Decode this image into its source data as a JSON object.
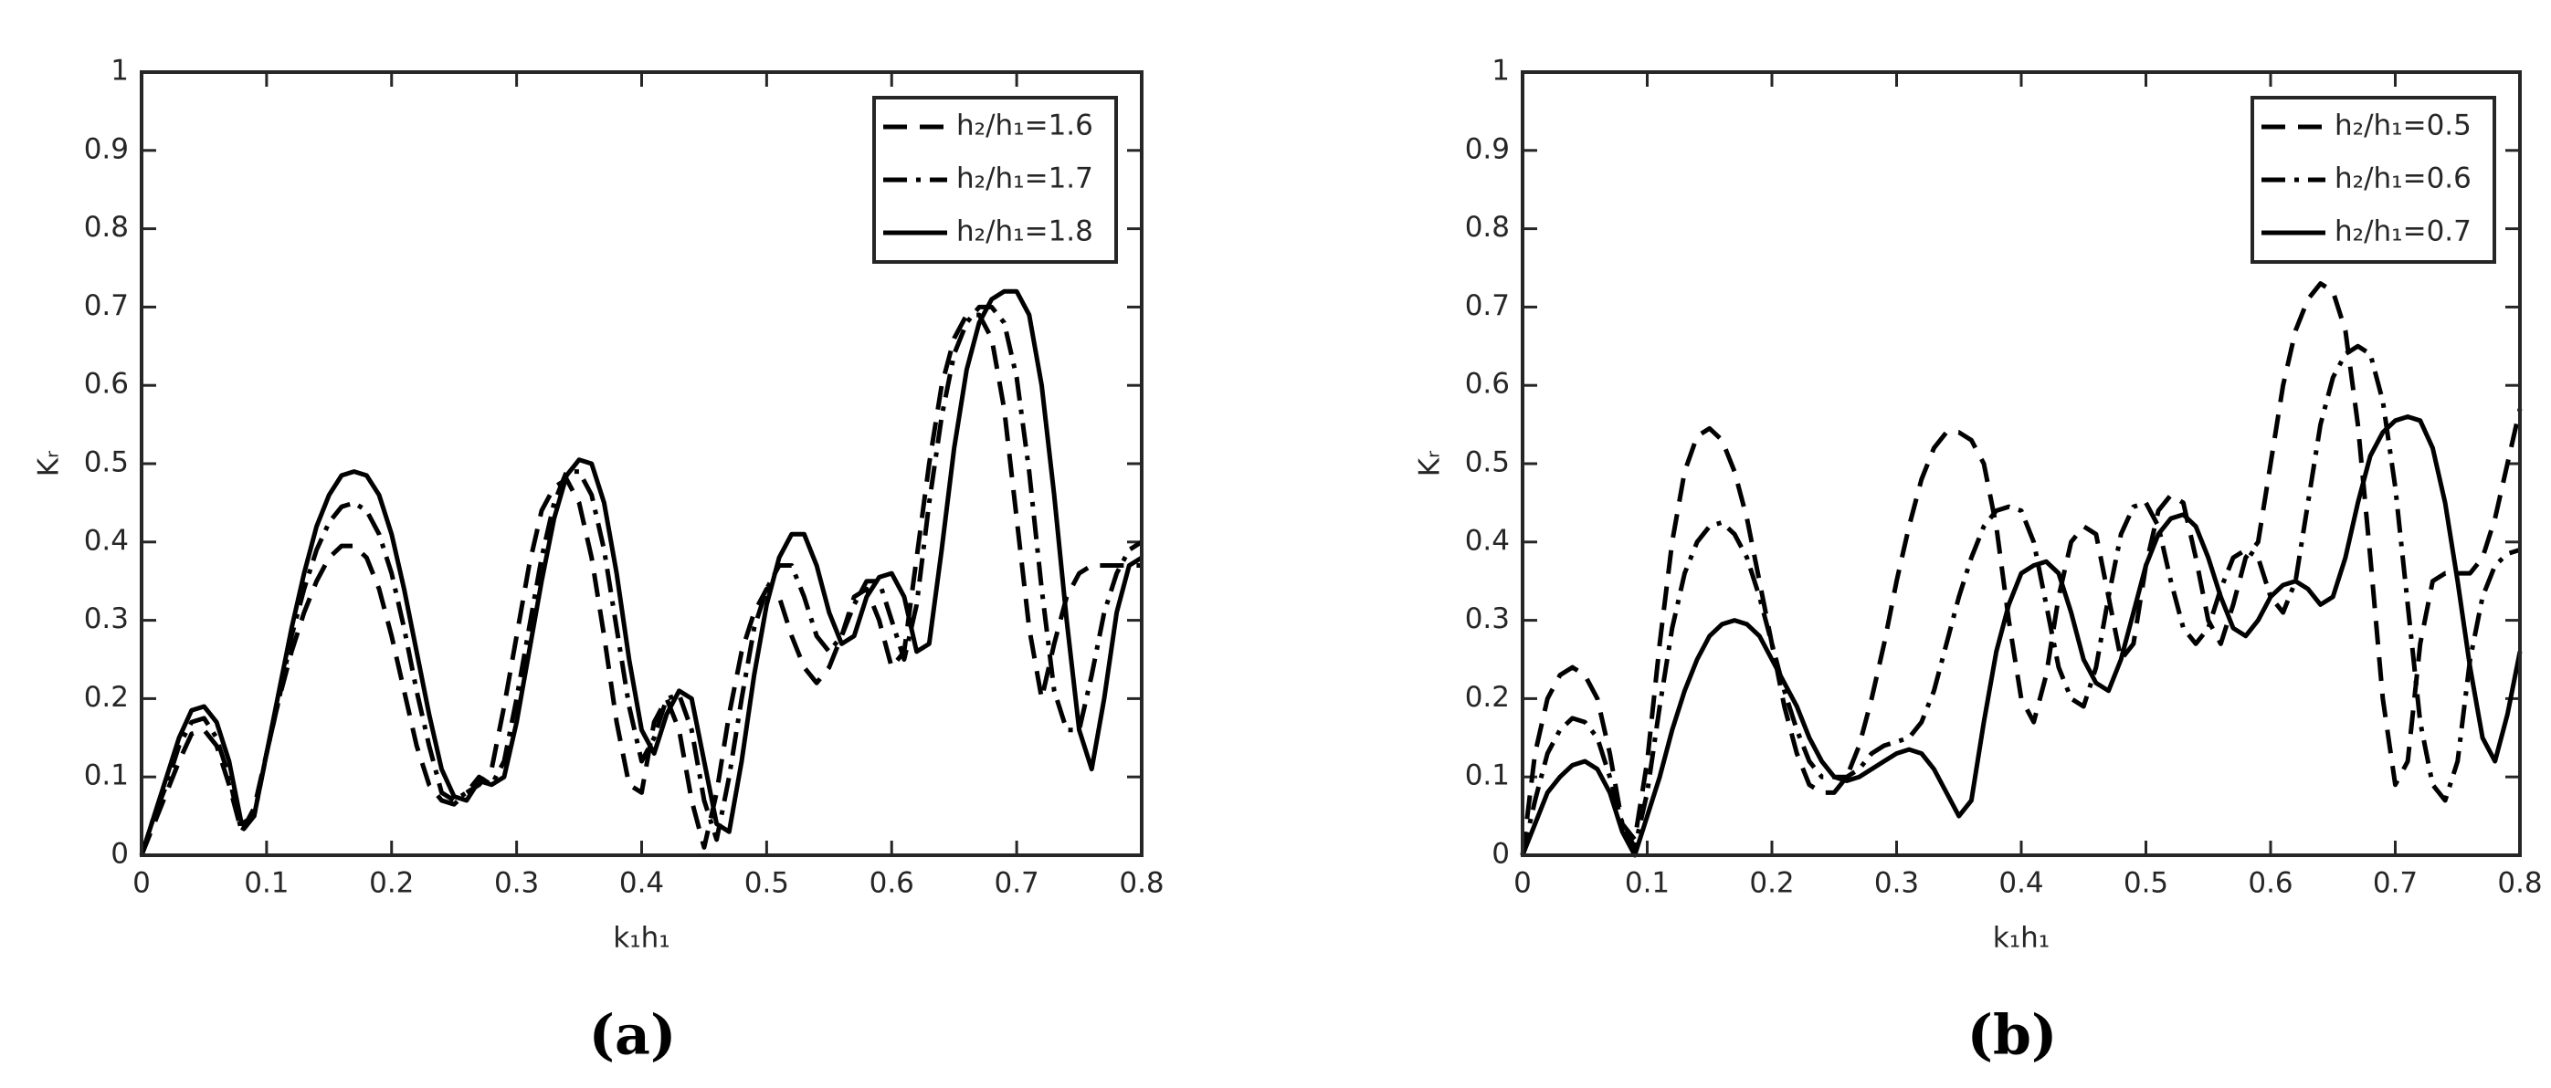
{
  "chart_data": [
    {
      "type": "line",
      "caption": "(a)",
      "xlabel": "k₁h₁",
      "ylabel": "Kᵣ",
      "legend": "upper right",
      "xlim": [
        0,
        0.8
      ],
      "ylim": [
        0,
        1
      ],
      "xticks": [
        0,
        0.1,
        0.2,
        0.3,
        0.4,
        0.5,
        0.6,
        0.7,
        0.8
      ],
      "yticks": [
        0,
        0.1,
        0.2,
        0.3,
        0.4,
        0.5,
        0.6,
        0.7,
        0.8,
        0.9,
        1
      ],
      "x": [
        0,
        0.01,
        0.02,
        0.03,
        0.04,
        0.05,
        0.06,
        0.07,
        0.08,
        0.09,
        0.1,
        0.11,
        0.12,
        0.13,
        0.14,
        0.15,
        0.16,
        0.17,
        0.18,
        0.19,
        0.2,
        0.21,
        0.22,
        0.23,
        0.24,
        0.25,
        0.26,
        0.27,
        0.28,
        0.29,
        0.3,
        0.31,
        0.32,
        0.33,
        0.34,
        0.35,
        0.36,
        0.37,
        0.38,
        0.39,
        0.4,
        0.41,
        0.42,
        0.43,
        0.44,
        0.45,
        0.46,
        0.47,
        0.48,
        0.49,
        0.5,
        0.51,
        0.52,
        0.53,
        0.54,
        0.55,
        0.56,
        0.57,
        0.58,
        0.59,
        0.6,
        0.61,
        0.62,
        0.63,
        0.64,
        0.65,
        0.66,
        0.67,
        0.68,
        0.69,
        0.7,
        0.71,
        0.72,
        0.73,
        0.74,
        0.75,
        0.76,
        0.77,
        0.78,
        0.79,
        0.8
      ],
      "series": [
        {
          "name": "h₂/h₁=1.6",
          "color": "#000000",
          "line_style": "dashed",
          "values": [
            0,
            0.04,
            0.08,
            0.12,
            0.155,
            0.16,
            0.14,
            0.09,
            0.03,
            0.06,
            0.13,
            0.2,
            0.26,
            0.31,
            0.35,
            0.38,
            0.395,
            0.395,
            0.38,
            0.34,
            0.28,
            0.21,
            0.14,
            0.09,
            0.07,
            0.065,
            0.08,
            0.09,
            0.11,
            0.19,
            0.28,
            0.37,
            0.44,
            0.47,
            0.48,
            0.45,
            0.38,
            0.28,
            0.17,
            0.09,
            0.08,
            0.17,
            0.2,
            0.16,
            0.07,
            0.01,
            0.08,
            0.18,
            0.26,
            0.31,
            0.34,
            0.33,
            0.28,
            0.24,
            0.22,
            0.24,
            0.28,
            0.33,
            0.34,
            0.3,
            0.24,
            0.26,
            0.38,
            0.5,
            0.6,
            0.66,
            0.69,
            0.69,
            0.66,
            0.57,
            0.43,
            0.29,
            0.2,
            0.27,
            0.33,
            0.36,
            0.37,
            0.37,
            0.37,
            0.37,
            0.37
          ]
        },
        {
          "name": "h₂/h₁=1.7",
          "color": "#000000",
          "line_style": "dashdot",
          "values": [
            0,
            0.05,
            0.09,
            0.14,
            0.17,
            0.175,
            0.15,
            0.1,
            0.03,
            0.05,
            0.13,
            0.2,
            0.28,
            0.34,
            0.39,
            0.425,
            0.445,
            0.45,
            0.44,
            0.41,
            0.36,
            0.29,
            0.21,
            0.14,
            0.08,
            0.07,
            0.08,
            0.1,
            0.09,
            0.12,
            0.2,
            0.29,
            0.38,
            0.45,
            0.49,
            0.49,
            0.46,
            0.39,
            0.29,
            0.19,
            0.12,
            0.15,
            0.2,
            0.205,
            0.16,
            0.07,
            0.02,
            0.1,
            0.2,
            0.29,
            0.34,
            0.37,
            0.37,
            0.33,
            0.28,
            0.26,
            0.28,
            0.32,
            0.35,
            0.35,
            0.3,
            0.25,
            0.32,
            0.45,
            0.56,
            0.64,
            0.68,
            0.7,
            0.7,
            0.68,
            0.61,
            0.49,
            0.34,
            0.21,
            0.16,
            0.16,
            0.23,
            0.31,
            0.36,
            0.39,
            0.4
          ]
        },
        {
          "name": "h₂/h₁=1.8",
          "color": "#000000",
          "line_style": "solid",
          "values": [
            0,
            0.05,
            0.1,
            0.15,
            0.185,
            0.19,
            0.17,
            0.12,
            0.04,
            0.05,
            0.13,
            0.21,
            0.29,
            0.36,
            0.42,
            0.46,
            0.485,
            0.49,
            0.485,
            0.46,
            0.41,
            0.34,
            0.26,
            0.18,
            0.11,
            0.075,
            0.07,
            0.095,
            0.09,
            0.1,
            0.17,
            0.26,
            0.35,
            0.43,
            0.485,
            0.505,
            0.5,
            0.45,
            0.36,
            0.25,
            0.16,
            0.13,
            0.18,
            0.21,
            0.2,
            0.12,
            0.04,
            0.03,
            0.12,
            0.23,
            0.32,
            0.38,
            0.41,
            0.41,
            0.37,
            0.31,
            0.27,
            0.28,
            0.33,
            0.355,
            0.36,
            0.33,
            0.26,
            0.27,
            0.39,
            0.52,
            0.62,
            0.68,
            0.71,
            0.72,
            0.72,
            0.69,
            0.6,
            0.46,
            0.3,
            0.16,
            0.11,
            0.2,
            0.31,
            0.37,
            0.38
          ]
        }
      ]
    },
    {
      "type": "line",
      "caption": "(b)",
      "xlabel": "k₁h₁",
      "ylabel": "Kᵣ",
      "legend": "upper right",
      "xlim": [
        0,
        0.8
      ],
      "ylim": [
        0,
        1
      ],
      "xticks": [
        0,
        0.1,
        0.2,
        0.3,
        0.4,
        0.5,
        0.6,
        0.7,
        0.8
      ],
      "yticks": [
        0,
        0.1,
        0.2,
        0.3,
        0.4,
        0.5,
        0.6,
        0.7,
        0.8,
        0.9,
        1
      ],
      "x": [
        0,
        0.01,
        0.02,
        0.03,
        0.04,
        0.05,
        0.06,
        0.07,
        0.08,
        0.09,
        0.1,
        0.11,
        0.12,
        0.13,
        0.14,
        0.15,
        0.16,
        0.17,
        0.18,
        0.19,
        0.2,
        0.21,
        0.22,
        0.23,
        0.24,
        0.25,
        0.26,
        0.27,
        0.28,
        0.29,
        0.3,
        0.31,
        0.32,
        0.33,
        0.34,
        0.35,
        0.36,
        0.37,
        0.38,
        0.39,
        0.4,
        0.41,
        0.42,
        0.43,
        0.44,
        0.45,
        0.46,
        0.47,
        0.48,
        0.49,
        0.5,
        0.51,
        0.52,
        0.53,
        0.54,
        0.55,
        0.56,
        0.57,
        0.58,
        0.59,
        0.6,
        0.61,
        0.62,
        0.63,
        0.64,
        0.65,
        0.66,
        0.67,
        0.68,
        0.69,
        0.7,
        0.71,
        0.72,
        0.73,
        0.74,
        0.75,
        0.76,
        0.77,
        0.78,
        0.79,
        0.8
      ],
      "series": [
        {
          "name": "h₂/h₁=0.5",
          "color": "#000000",
          "line_style": "dashed",
          "values": [
            0,
            0.13,
            0.2,
            0.23,
            0.24,
            0.23,
            0.2,
            0.13,
            0.04,
            0.02,
            0.12,
            0.27,
            0.4,
            0.49,
            0.535,
            0.545,
            0.53,
            0.49,
            0.43,
            0.35,
            0.27,
            0.19,
            0.13,
            0.09,
            0.08,
            0.08,
            0.1,
            0.14,
            0.2,
            0.27,
            0.35,
            0.42,
            0.48,
            0.52,
            0.54,
            0.54,
            0.53,
            0.5,
            0.42,
            0.3,
            0.2,
            0.17,
            0.23,
            0.33,
            0.4,
            0.42,
            0.41,
            0.33,
            0.25,
            0.27,
            0.37,
            0.44,
            0.46,
            0.45,
            0.38,
            0.3,
            0.27,
            0.32,
            0.38,
            0.4,
            0.5,
            0.6,
            0.67,
            0.71,
            0.73,
            0.72,
            0.67,
            0.55,
            0.38,
            0.2,
            0.09,
            0.12,
            0.27,
            0.35,
            0.36,
            0.36,
            0.36,
            0.38,
            0.43,
            0.5,
            0.57
          ]
        },
        {
          "name": "h₂/h₁=0.6",
          "color": "#000000",
          "line_style": "dashdot",
          "values": [
            0,
            0.07,
            0.13,
            0.16,
            0.175,
            0.17,
            0.15,
            0.1,
            0.04,
            0.01,
            0.08,
            0.19,
            0.29,
            0.36,
            0.4,
            0.42,
            0.425,
            0.41,
            0.38,
            0.33,
            0.27,
            0.21,
            0.16,
            0.12,
            0.1,
            0.1,
            0.1,
            0.11,
            0.13,
            0.14,
            0.145,
            0.15,
            0.17,
            0.21,
            0.27,
            0.33,
            0.38,
            0.42,
            0.44,
            0.445,
            0.44,
            0.4,
            0.32,
            0.24,
            0.2,
            0.19,
            0.24,
            0.33,
            0.41,
            0.445,
            0.45,
            0.42,
            0.35,
            0.29,
            0.27,
            0.29,
            0.34,
            0.38,
            0.39,
            0.38,
            0.33,
            0.31,
            0.35,
            0.45,
            0.55,
            0.61,
            0.64,
            0.65,
            0.64,
            0.58,
            0.47,
            0.32,
            0.17,
            0.09,
            0.07,
            0.12,
            0.25,
            0.33,
            0.37,
            0.385,
            0.39
          ]
        },
        {
          "name": "h₂/h₁=0.7",
          "color": "#000000",
          "line_style": "solid",
          "values": [
            0,
            0.04,
            0.08,
            0.1,
            0.115,
            0.12,
            0.11,
            0.08,
            0.03,
            0,
            0.05,
            0.1,
            0.16,
            0.21,
            0.25,
            0.28,
            0.295,
            0.3,
            0.295,
            0.28,
            0.25,
            0.22,
            0.19,
            0.15,
            0.12,
            0.1,
            0.095,
            0.1,
            0.11,
            0.12,
            0.13,
            0.135,
            0.13,
            0.11,
            0.08,
            0.05,
            0.07,
            0.17,
            0.26,
            0.32,
            0.36,
            0.37,
            0.375,
            0.36,
            0.31,
            0.25,
            0.22,
            0.21,
            0.25,
            0.31,
            0.37,
            0.41,
            0.43,
            0.435,
            0.42,
            0.38,
            0.33,
            0.29,
            0.28,
            0.3,
            0.33,
            0.345,
            0.35,
            0.34,
            0.32,
            0.33,
            0.38,
            0.45,
            0.51,
            0.54,
            0.555,
            0.56,
            0.555,
            0.52,
            0.45,
            0.35,
            0.24,
            0.15,
            0.12,
            0.18,
            0.26
          ]
        }
      ]
    }
  ]
}
